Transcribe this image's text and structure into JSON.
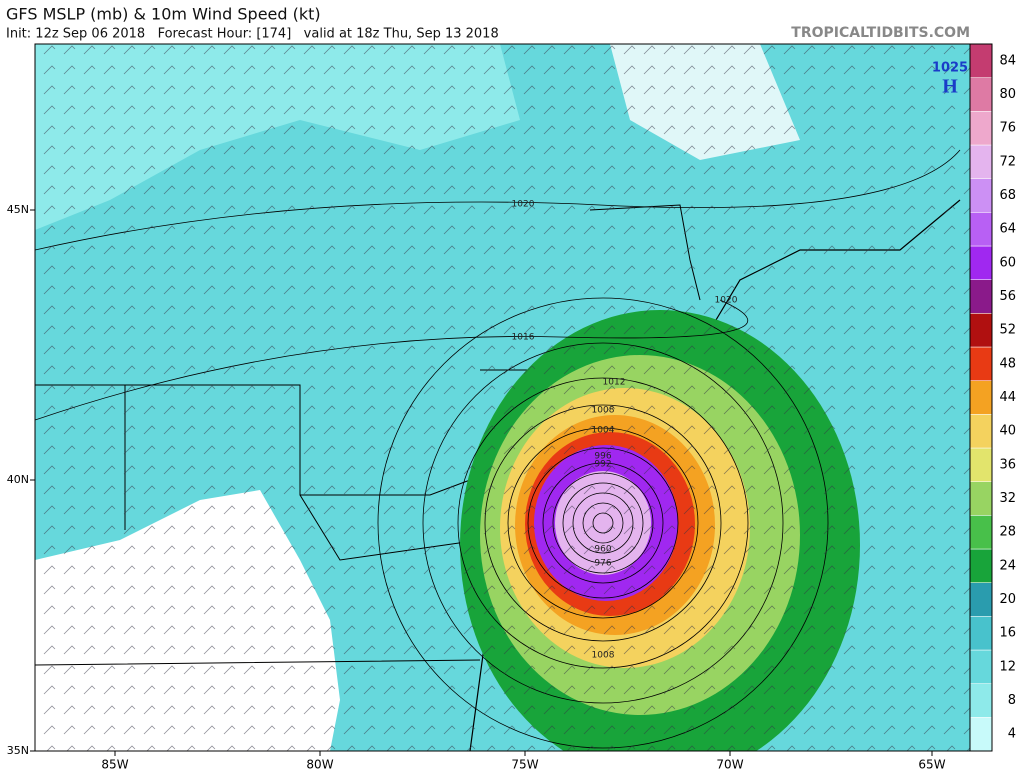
{
  "header": {
    "title": "GFS MSLP (mb) & 10m Wind Speed (kt)",
    "subtitle": "Init: 12z Sep 06 2018   Forecast Hour: [174]   valid at 18z Thu, Sep 13 2018",
    "brand": "TROPICALTIDBITS.COM"
  },
  "map": {
    "longitude_labels": [
      "85W",
      "80W",
      "75W",
      "70W",
      "65W"
    ],
    "latitude_labels": [
      "45N",
      "40N",
      "35N"
    ],
    "high": {
      "pressure": "1025",
      "label": "H"
    },
    "isobar_labels": [
      "1020",
      "1016",
      "1012",
      "1008",
      "1004",
      "996",
      "992",
      "960",
      "976",
      "1008",
      "1020"
    ]
  },
  "colorbar": {
    "ticks": [
      4,
      8,
      12,
      16,
      20,
      24,
      28,
      32,
      36,
      40,
      44,
      48,
      52,
      56,
      60,
      64,
      68,
      72,
      76,
      80,
      84
    ],
    "colors": [
      "#c8fafa",
      "#8eeaea",
      "#66d8dc",
      "#48c2cc",
      "#2a9cae",
      "#18a43a",
      "#48c04a",
      "#98d462",
      "#e2e46c",
      "#f4d25e",
      "#f4a222",
      "#e83a14",
      "#b01010",
      "#8a1a8a",
      "#a028f0",
      "#b860f4",
      "#cc90f4",
      "#e4b4ee",
      "#eea8cc",
      "#de7aa4",
      "#c43c70"
    ]
  }
}
